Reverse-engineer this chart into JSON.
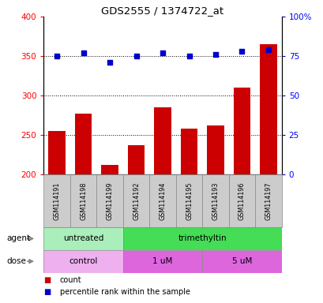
{
  "title": "GDS2555 / 1374722_at",
  "samples": [
    "GSM114191",
    "GSM114198",
    "GSM114199",
    "GSM114192",
    "GSM114194",
    "GSM114195",
    "GSM114193",
    "GSM114196",
    "GSM114197"
  ],
  "count_values": [
    255,
    277,
    212,
    237,
    285,
    258,
    262,
    310,
    365
  ],
  "percentile_values": [
    75,
    77,
    71,
    75,
    77,
    75,
    76,
    78,
    79
  ],
  "bar_color": "#cc0000",
  "dot_color": "#0000cc",
  "ylim_left": [
    200,
    400
  ],
  "ylim_right": [
    0,
    100
  ],
  "yticks_left": [
    200,
    250,
    300,
    350,
    400
  ],
  "yticks_right": [
    0,
    25,
    50,
    75,
    100
  ],
  "yticklabels_right": [
    "0",
    "25",
    "50",
    "75",
    "100%"
  ],
  "grid_values": [
    250,
    300,
    350
  ],
  "agent_labels": [
    {
      "text": "untreated",
      "start": 0,
      "end": 3,
      "color": "#aaeebb"
    },
    {
      "text": "trimethyltin",
      "start": 3,
      "end": 9,
      "color": "#44dd55"
    }
  ],
  "dose_labels": [
    {
      "text": "control",
      "start": 0,
      "end": 3,
      "color": "#eeb0ee"
    },
    {
      "text": "1 uM",
      "start": 3,
      "end": 6,
      "color": "#dd66dd"
    },
    {
      "text": "5 uM",
      "start": 6,
      "end": 9,
      "color": "#dd66dd"
    }
  ],
  "legend_count_label": "count",
  "legend_percentile_label": "percentile rank within the sample",
  "agent_row_label": "agent",
  "dose_row_label": "dose",
  "background_color": "#ffffff",
  "plot_bg_color": "#ffffff",
  "sample_box_color": "#cccccc",
  "sample_box_edge": "#888888"
}
